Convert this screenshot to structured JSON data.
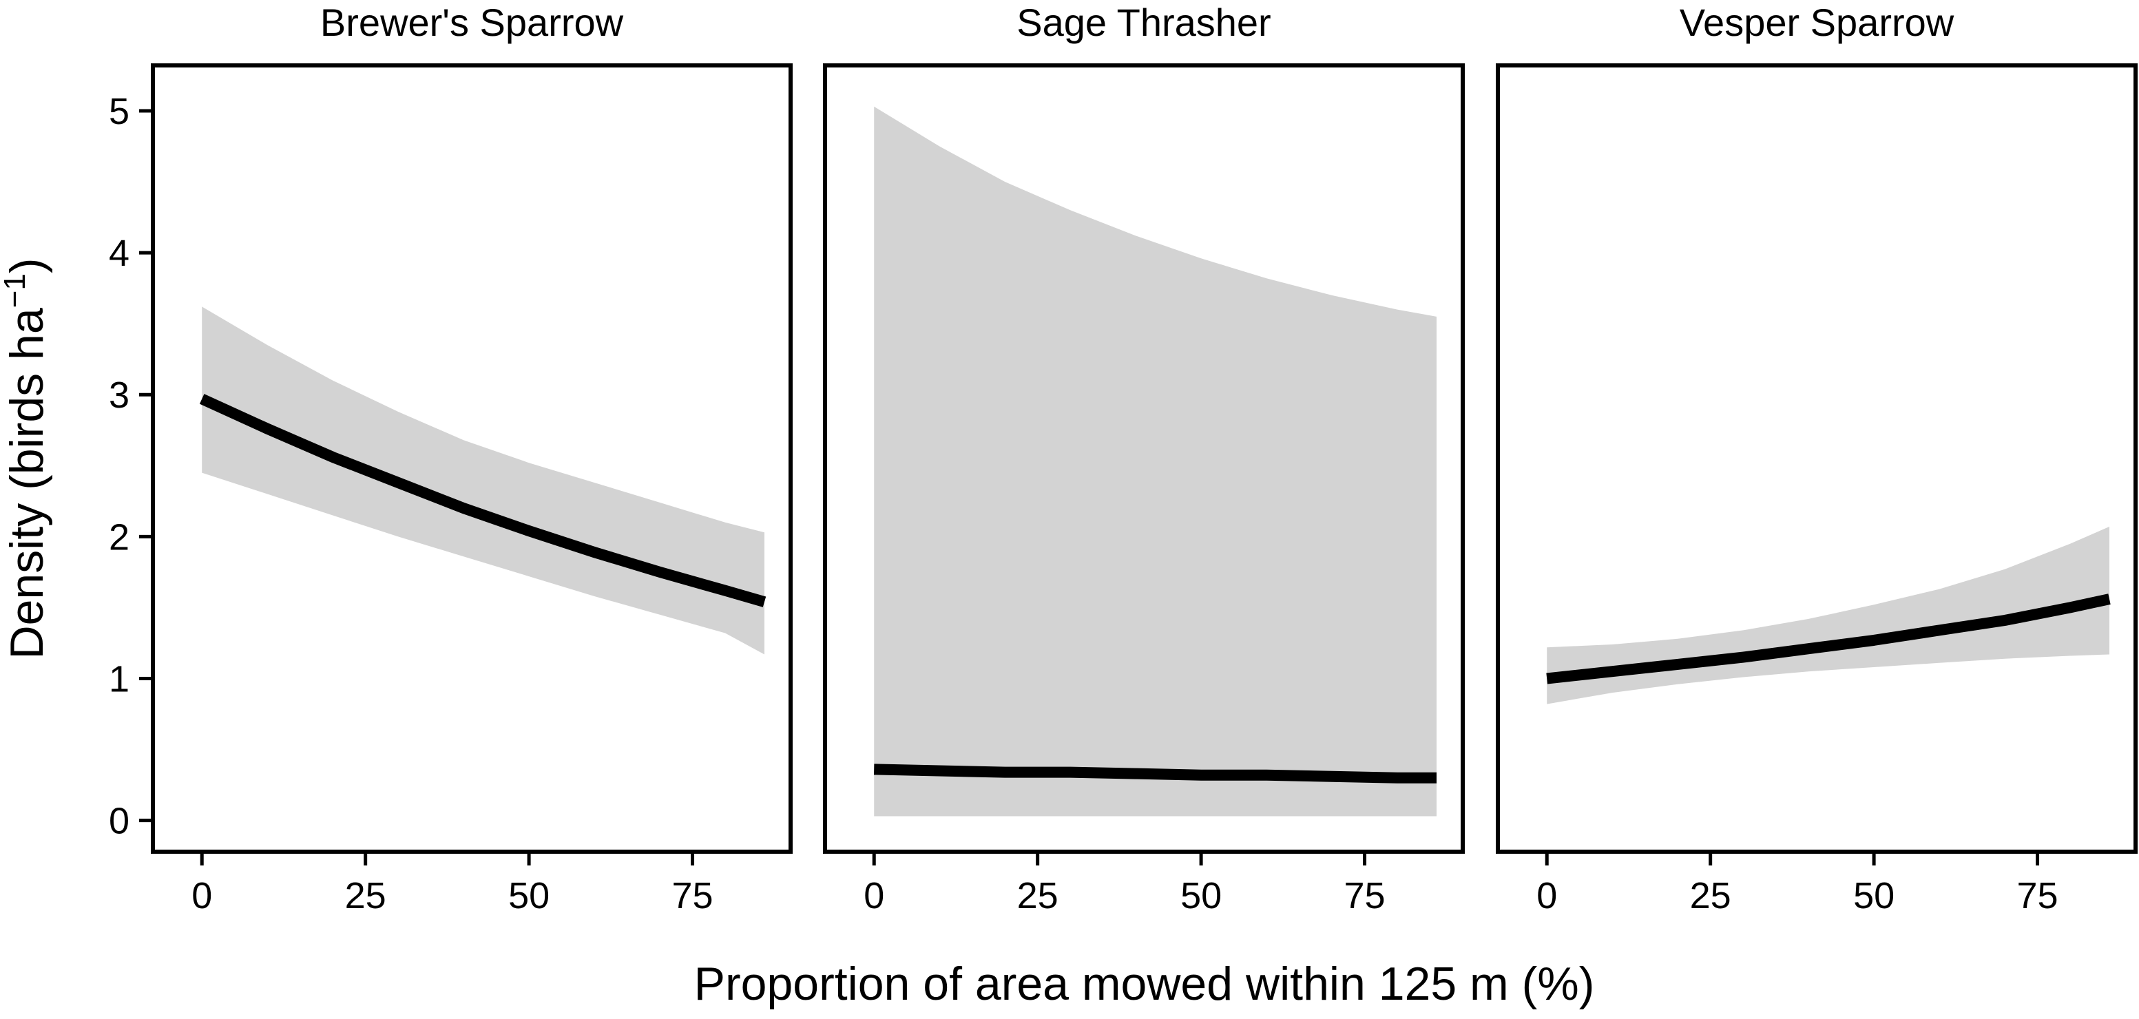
{
  "chart_data": {
    "type": "line",
    "xlabel": "Proportion of area mowed within 125 m (%)",
    "ylabel": "Density (birds ha",
    "ylabel_superscript": "−1",
    "ylabel_suffix": ")",
    "xlim": [
      -7.5,
      90
    ],
    "ylim": [
      -0.22,
      5.32
    ],
    "xticks": [
      0,
      25,
      50,
      75
    ],
    "yticks": [
      0,
      1,
      2,
      3,
      4,
      5
    ],
    "grid": false,
    "legend": "none",
    "line_color": "#000000",
    "band_color": "#d3d3d3",
    "panels": [
      {
        "title": "Brewer's Sparrow",
        "x": [
          0,
          10,
          20,
          30,
          40,
          50,
          60,
          70,
          80,
          86
        ],
        "y": [
          2.97,
          2.76,
          2.56,
          2.38,
          2.2,
          2.04,
          1.89,
          1.75,
          1.62,
          1.54
        ],
        "lower": [
          2.45,
          2.3,
          2.15,
          2.0,
          1.86,
          1.72,
          1.58,
          1.45,
          1.32,
          1.17
        ],
        "upper": [
          3.62,
          3.35,
          3.1,
          2.88,
          2.68,
          2.52,
          2.38,
          2.24,
          2.1,
          2.03
        ]
      },
      {
        "title": "Sage Thrasher",
        "x": [
          0,
          10,
          20,
          30,
          40,
          50,
          60,
          70,
          80,
          86
        ],
        "y": [
          0.36,
          0.35,
          0.34,
          0.34,
          0.33,
          0.32,
          0.32,
          0.31,
          0.3,
          0.3
        ],
        "lower": [
          0.03,
          0.03,
          0.03,
          0.03,
          0.03,
          0.03,
          0.03,
          0.03,
          0.03,
          0.03
        ],
        "upper": [
          5.03,
          4.75,
          4.5,
          4.3,
          4.12,
          3.96,
          3.82,
          3.7,
          3.6,
          3.55
        ]
      },
      {
        "title": "Vesper Sparrow",
        "x": [
          0,
          10,
          20,
          30,
          40,
          50,
          60,
          70,
          80,
          86
        ],
        "y": [
          1.0,
          1.05,
          1.1,
          1.15,
          1.21,
          1.27,
          1.34,
          1.41,
          1.5,
          1.56
        ],
        "lower": [
          0.82,
          0.9,
          0.96,
          1.01,
          1.05,
          1.08,
          1.11,
          1.14,
          1.16,
          1.17
        ],
        "upper": [
          1.22,
          1.24,
          1.28,
          1.34,
          1.42,
          1.52,
          1.63,
          1.77,
          1.95,
          2.07
        ]
      }
    ]
  }
}
